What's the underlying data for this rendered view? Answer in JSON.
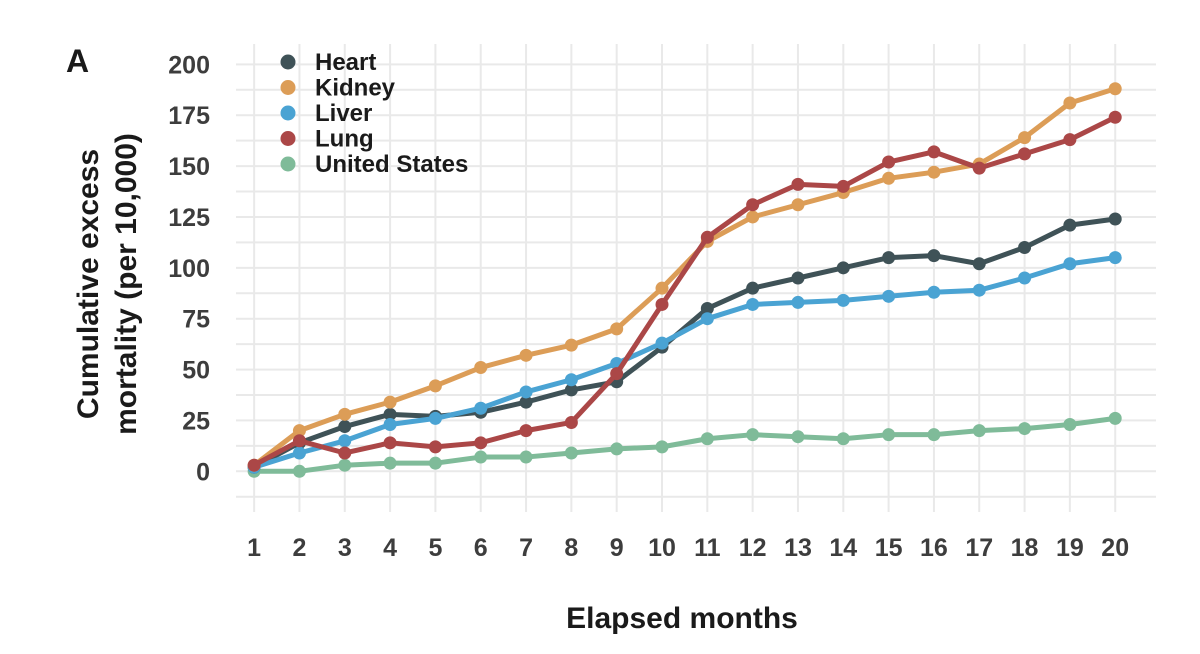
{
  "chart_data": {
    "type": "line",
    "panel_label": "A",
    "title": "",
    "xlabel": "Elapsed months",
    "ylabel_lines": [
      "Cumulative excess",
      "mortality (per 10,000)"
    ],
    "x": [
      1,
      2,
      3,
      4,
      5,
      6,
      7,
      8,
      9,
      10,
      11,
      12,
      13,
      14,
      15,
      16,
      17,
      18,
      19,
      20
    ],
    "x_ticks": [
      "1",
      "2",
      "3",
      "4",
      "5",
      "6",
      "7",
      "8",
      "9",
      "10",
      "11",
      "12",
      "13",
      "14",
      "15",
      "16",
      "17",
      "18",
      "19",
      "20"
    ],
    "xlim": [
      0.6,
      20.9
    ],
    "ylim": [
      -20,
      210
    ],
    "y_ticks": [
      0,
      25,
      50,
      75,
      100,
      125,
      150,
      175,
      200
    ],
    "y_tick_labels": [
      "0",
      "25",
      "50",
      "75",
      "100",
      "125",
      "150",
      "175",
      "200"
    ],
    "grid": true,
    "legend_position": "top-left",
    "series": [
      {
        "name": "Heart",
        "color": "#3f5257",
        "values": [
          2,
          14,
          22,
          28,
          27,
          29,
          34,
          40,
          44,
          61,
          80,
          90,
          95,
          100,
          105,
          106,
          102,
          110,
          121,
          124
        ]
      },
      {
        "name": "Kidney",
        "color": "#dc9d57",
        "values": [
          3,
          20,
          28,
          34,
          42,
          51,
          57,
          62,
          70,
          90,
          113,
          125,
          131,
          137,
          144,
          147,
          151,
          164,
          181,
          188
        ]
      },
      {
        "name": "Liver",
        "color": "#4aa3d3",
        "values": [
          2,
          9,
          15,
          23,
          26,
          31,
          39,
          45,
          53,
          63,
          75,
          82,
          83,
          84,
          86,
          88,
          89,
          95,
          102,
          105
        ]
      },
      {
        "name": "Lung",
        "color": "#ab4747",
        "values": [
          3,
          15,
          9,
          14,
          12,
          14,
          20,
          24,
          48,
          82,
          115,
          131,
          141,
          140,
          152,
          157,
          149,
          156,
          163,
          174
        ]
      },
      {
        "name": "United States",
        "color": "#7fbb99",
        "values": [
          0,
          0,
          3,
          4,
          4,
          7,
          7,
          9,
          11,
          12,
          16,
          18,
          17,
          16,
          18,
          18,
          20,
          21,
          23,
          26
        ]
      }
    ]
  }
}
